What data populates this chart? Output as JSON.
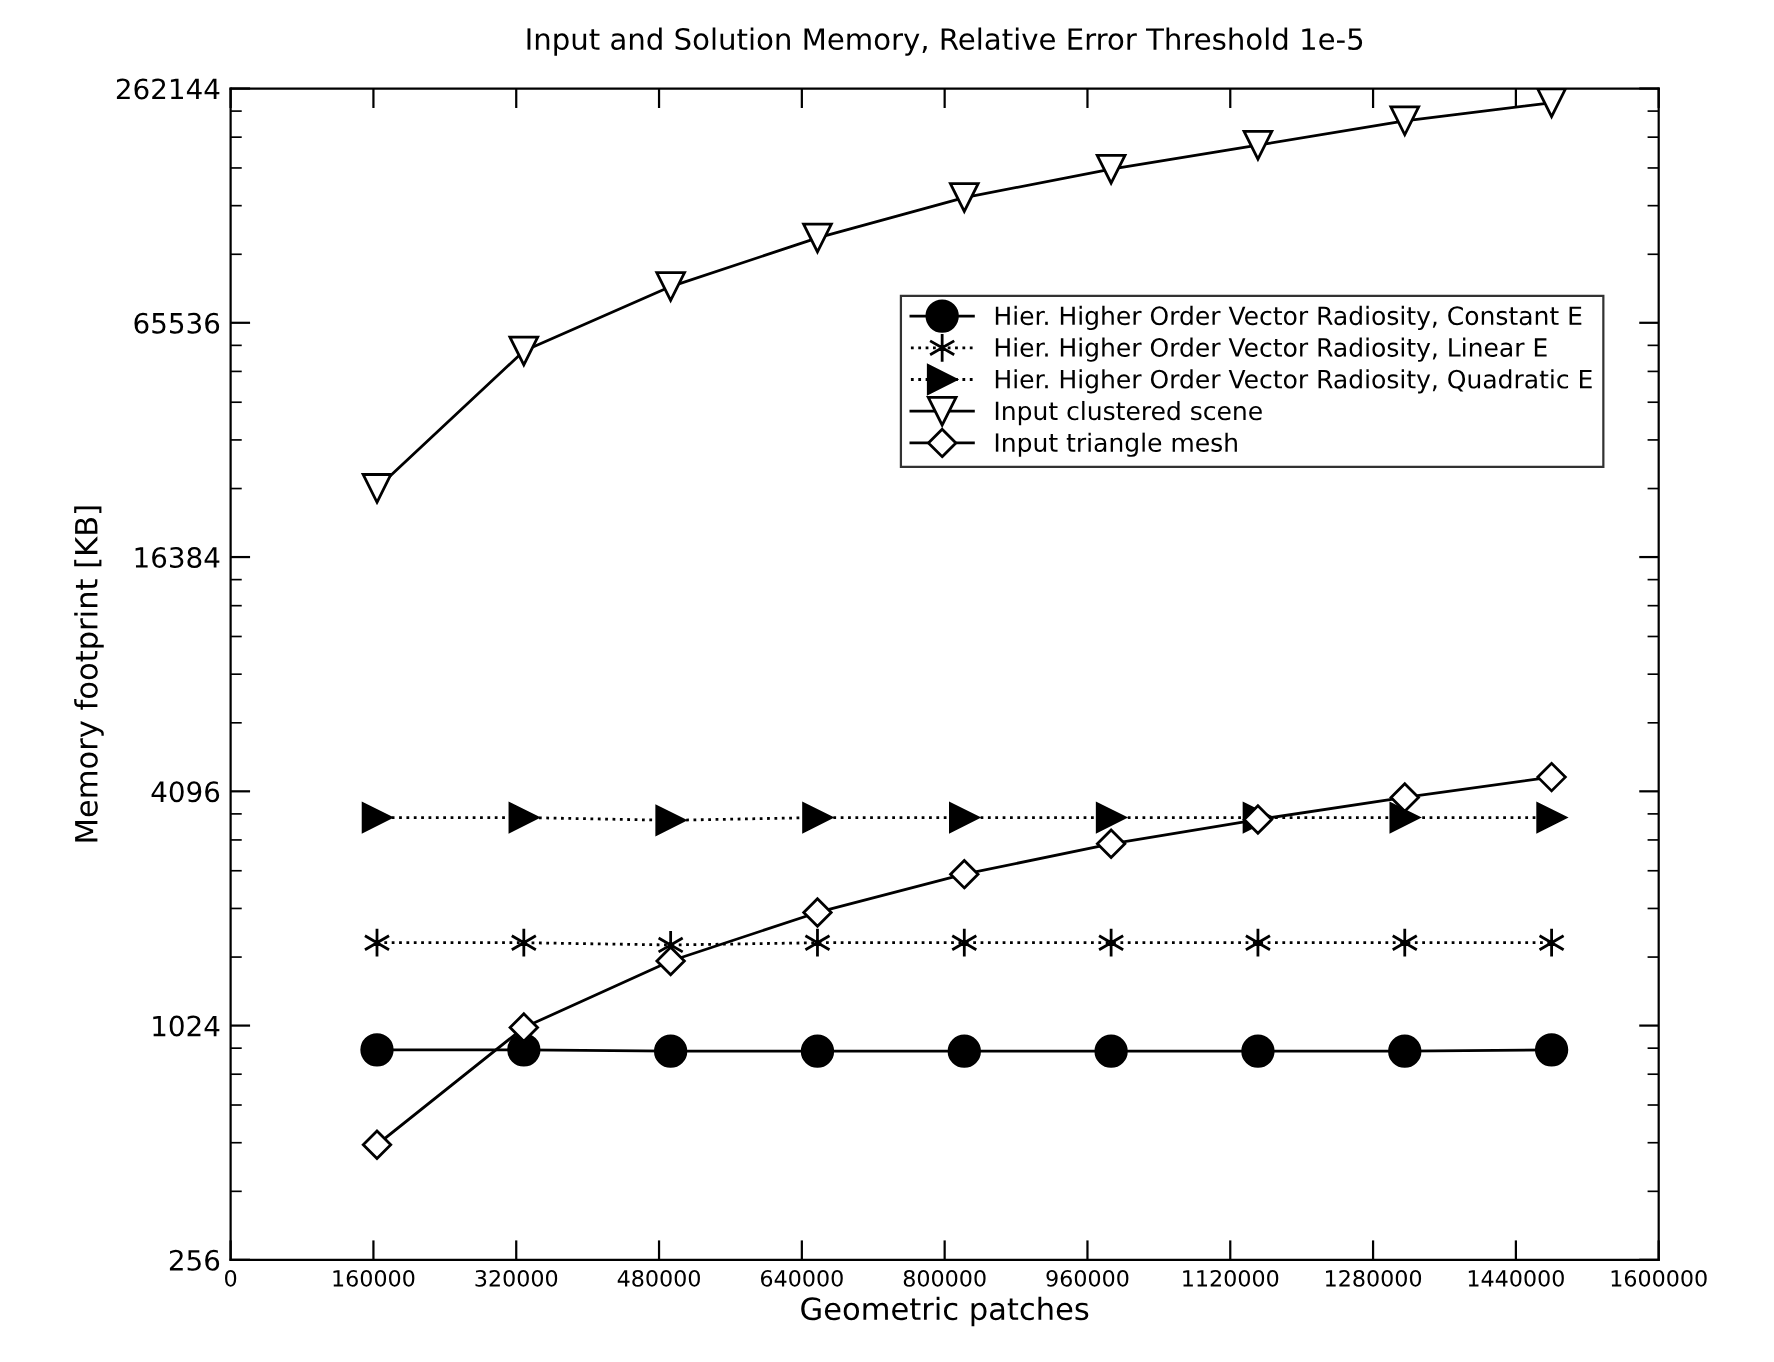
{
  "chart_data": {
    "type": "line",
    "title": "Input and Solution Memory, Relative Error Threshold 1e-5",
    "xlabel": "Geometric patches",
    "ylabel": "Memory footprint [KB]",
    "x": [
      164000,
      328500,
      493000,
      657500,
      822000,
      986500,
      1151000,
      1315500,
      1480000
    ],
    "series": [
      {
        "name": "Hier. Higher Order Vector Radiosity, Constant E",
        "color": "#000000",
        "marker": "circle",
        "line_style": "solid",
        "values": [
          887,
          887,
          880,
          880,
          880,
          880,
          880,
          880,
          887
        ]
      },
      {
        "name": "Hier. Higher Order Vector Radiosity, Linear E",
        "color": "#000000",
        "marker": "cross",
        "line_style": "dotted",
        "values": [
          1672,
          1672,
          1650,
          1672,
          1672,
          1672,
          1672,
          1672,
          1672
        ]
      },
      {
        "name": "Hier. Higher Order Vector Radiosity, Quadratic E",
        "color": "#000000",
        "marker": "triangle",
        "line_style": "dotted",
        "values": [
          3507,
          3507,
          3450,
          3507,
          3507,
          3507,
          3507,
          3507,
          3507
        ]
      },
      {
        "name": "Input clustered scene",
        "color": "#000000",
        "marker": "triangle_down",
        "line_style": "solid",
        "values": [
          24600,
          55450,
          81200,
          108300,
          137500,
          162600,
          187500,
          216500,
          241000
        ]
      },
      {
        "name": "Input triangle mesh",
        "color": "#000000",
        "marker": "diamond",
        "line_style": "solid",
        "values": [
          506,
          1012,
          1501,
          2000,
          2509,
          3002,
          3466,
          3950,
          4455
        ]
      }
    ],
    "log": "y",
    "xlim": [
      0,
      1600000
    ],
    "xticks": [
      0,
      160000,
      320000,
      480000,
      640000,
      800000,
      960000,
      1120000,
      1280000,
      1440000,
      1600000
    ],
    "ylim": [
      256,
      262144
    ],
    "yticks": [
      256,
      1024,
      4096,
      16384,
      65536,
      262144
    ],
    "grid": false,
    "legend": "right"
  }
}
